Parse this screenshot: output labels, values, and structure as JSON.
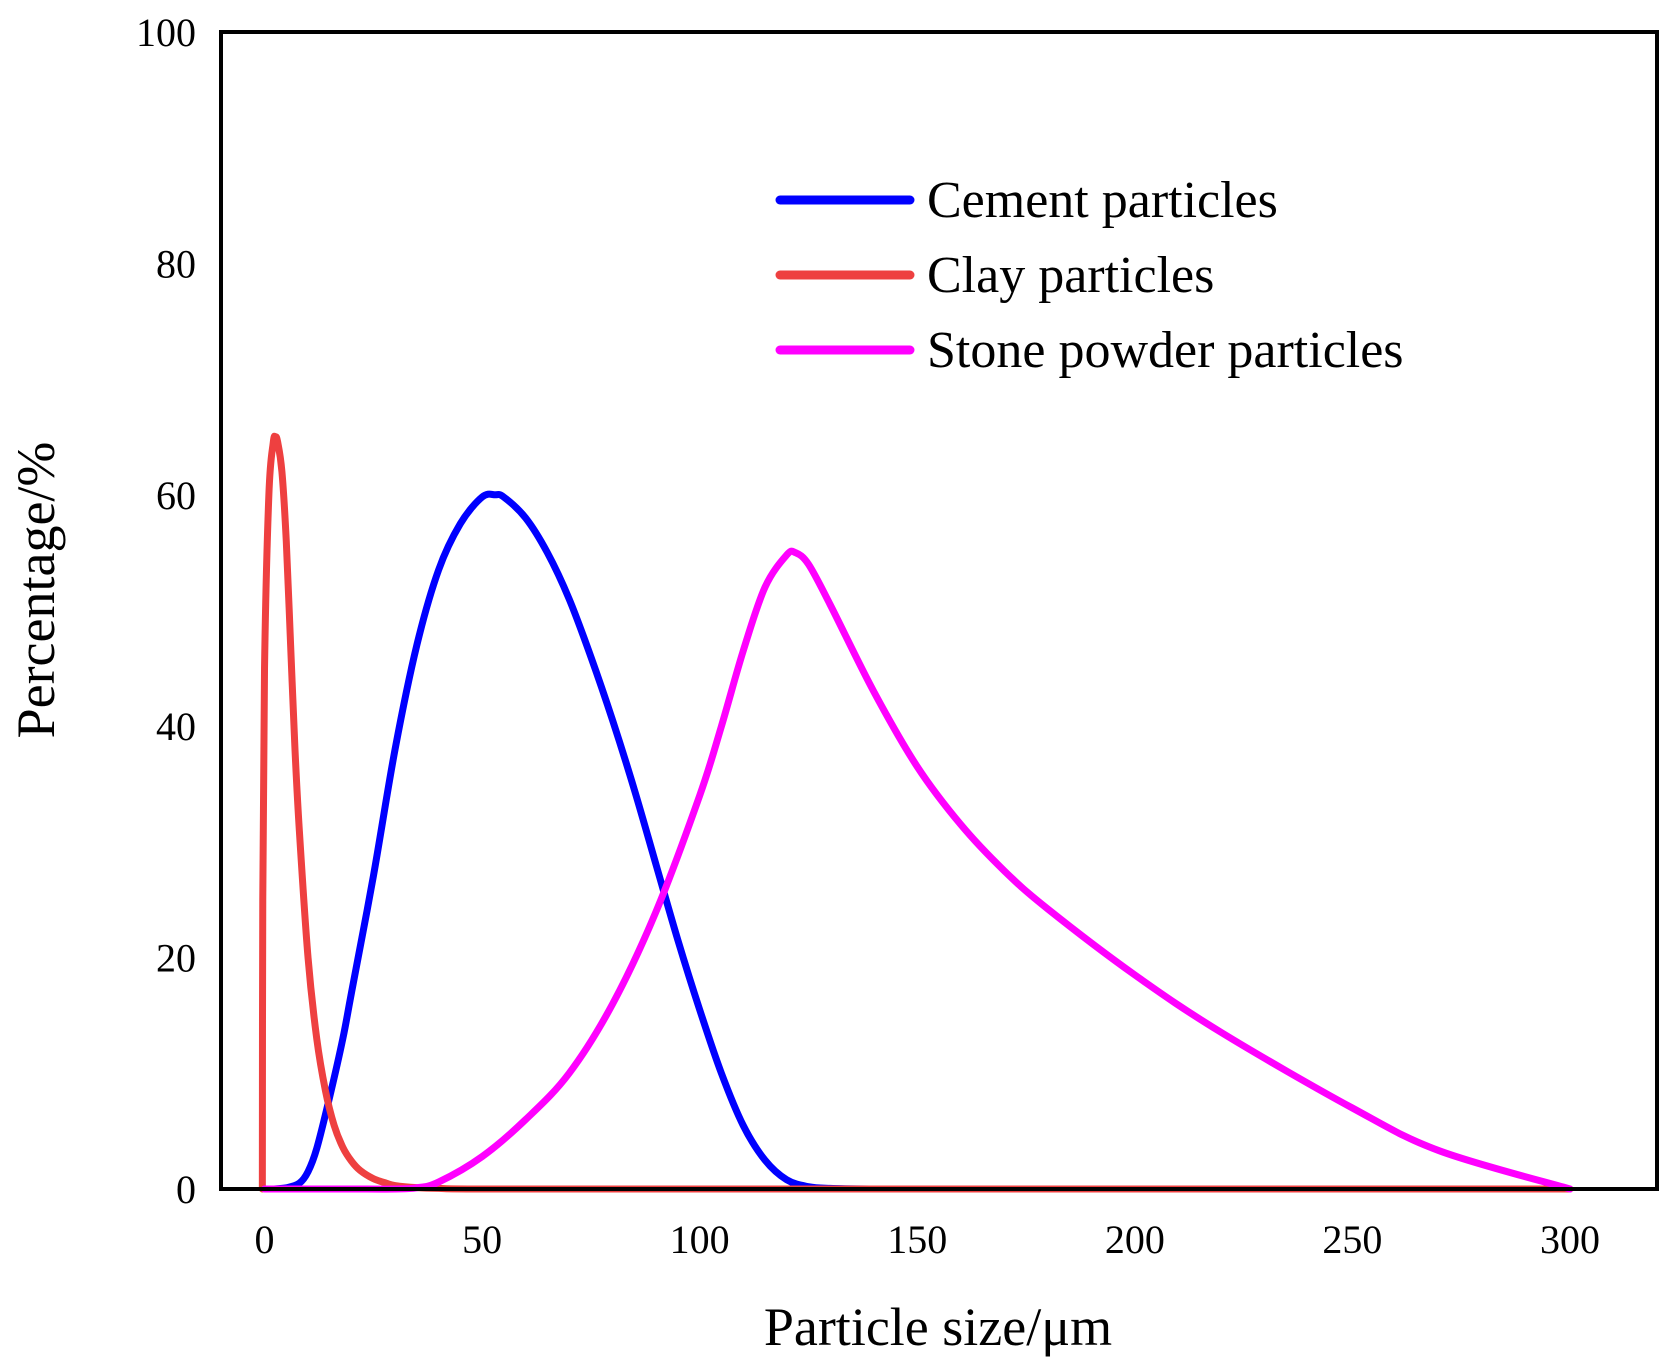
{
  "chart_data": {
    "type": "line",
    "title": "",
    "xlabel": "Particle size/μm",
    "ylabel": "Percentage/%",
    "xlim": [
      -10,
      320
    ],
    "ylim": [
      0,
      100
    ],
    "xticks": [
      0,
      50,
      100,
      150,
      200,
      250,
      300
    ],
    "yticks": [
      0,
      20,
      40,
      60,
      80,
      100
    ],
    "grid": false,
    "legend_position": "top-right",
    "series": [
      {
        "name": "Cement particles",
        "color": "#0000ff",
        "x": [
          2,
          5,
          8,
          10,
          12,
          15,
          18,
          20,
          25,
          30,
          35,
          40,
          45,
          50,
          53,
          55,
          60,
          65,
          70,
          75,
          80,
          85,
          90,
          95,
          100,
          105,
          110,
          115,
          120,
          125,
          130,
          140,
          150
        ],
        "y": [
          0,
          0.1,
          0.5,
          1.5,
          3.5,
          8,
          13,
          17,
          27,
          38,
          47,
          53.5,
          57.5,
          59.8,
          60,
          59.8,
          58,
          55,
          51,
          46,
          40.5,
          34.5,
          28,
          21.5,
          15.5,
          10,
          5.5,
          2.5,
          0.8,
          0.2,
          0.05,
          0,
          0
        ]
      },
      {
        "name": "Clay particles",
        "color": "#ee4040",
        "x": [
          -0.5,
          -0.4,
          0,
          1,
          2,
          2.5,
          3,
          4,
          5,
          6,
          7,
          8,
          10,
          12,
          14,
          16,
          18,
          20,
          22,
          25,
          28,
          30,
          35,
          40,
          50,
          100,
          150,
          200,
          250,
          300
        ],
        "y": [
          0,
          25,
          45,
          60,
          64.5,
          65,
          64.6,
          62,
          56,
          47,
          38,
          31,
          20,
          13,
          8.5,
          5.5,
          3.6,
          2.4,
          1.6,
          0.9,
          0.5,
          0.3,
          0.12,
          0.05,
          0,
          0,
          0,
          0,
          0,
          0
        ]
      },
      {
        "name": "Stone powder particles",
        "color": "#ff00ff",
        "x": [
          0,
          10,
          20,
          30,
          35,
          40,
          50,
          60,
          70,
          80,
          90,
          100,
          105,
          110,
          115,
          120,
          122,
          125,
          130,
          140,
          150,
          160,
          170,
          180,
          200,
          220,
          250,
          270,
          300
        ],
        "y": [
          0,
          0,
          0,
          0,
          0.1,
          0.6,
          2.8,
          6,
          10,
          16,
          24,
          34,
          40,
          46.5,
          52,
          54.8,
          55,
          54,
          50.5,
          43,
          36.5,
          31.5,
          27.5,
          24.2,
          18.5,
          13.5,
          7,
          3.3,
          0
        ]
      }
    ]
  }
}
